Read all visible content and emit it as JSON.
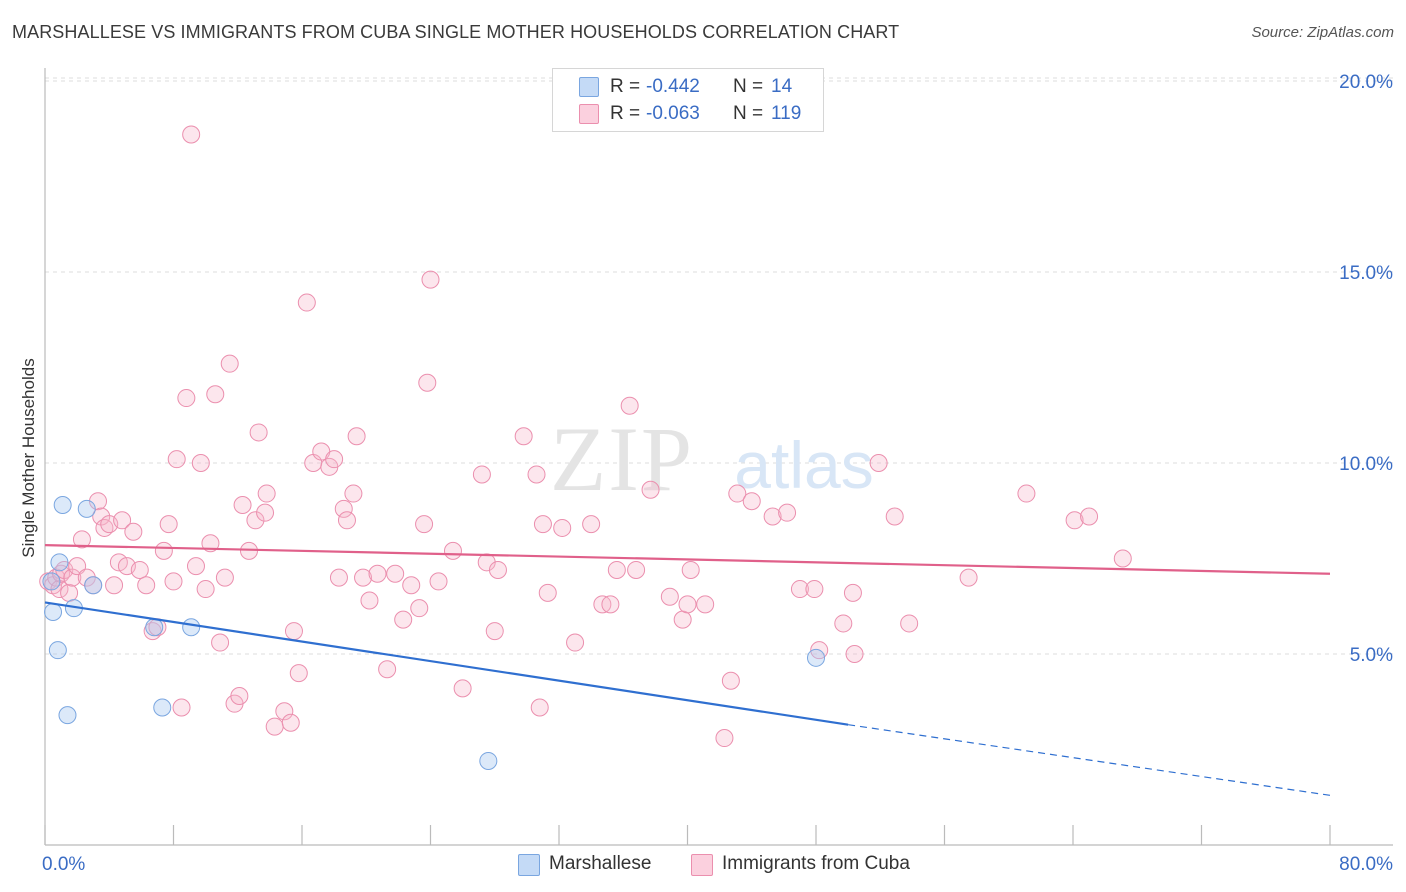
{
  "title": "MARSHALLESE VS IMMIGRANTS FROM CUBA SINGLE MOTHER HOUSEHOLDS CORRELATION CHART",
  "source": "Source: ZipAtlas.com",
  "watermark": {
    "zip": "ZIP",
    "atlas": "atlas"
  },
  "legend": {
    "r_label": "R =",
    "n_label": "N =",
    "rows": [
      {
        "name": "Marshallese",
        "r": "-0.442",
        "n": "14",
        "color": "#a8c8f0"
      },
      {
        "name": "Immigrants from Cuba",
        "r": "-0.063",
        "n": "119",
        "color": "#f5b8cc"
      }
    ]
  },
  "colors": {
    "blue_line": "#2f6fd0",
    "pink_line": "#e0608a",
    "blue_dot_stroke": "#7aa6e0",
    "pink_dot_stroke": "#eb8fae",
    "tick_label": "#3a6cc4",
    "grid": "#dcdcdc"
  },
  "chart_data": {
    "type": "scatter",
    "title": "MARSHALLESE VS IMMIGRANTS FROM CUBA SINGLE MOTHER HOUSEHOLDS CORRELATION CHART",
    "xlabel": "",
    "ylabel": "Single Mother Households",
    "xlim": [
      0,
      80
    ],
    "ylim": [
      0,
      20.8
    ],
    "x_tick_labels": [
      "0.0%",
      "80.0%"
    ],
    "y_ticks": [
      5,
      10,
      15,
      20
    ],
    "y_tick_labels": [
      "5.0%",
      "10.0%",
      "15.0%",
      "20.0%"
    ],
    "grid": true,
    "legend_position": "top-center",
    "series": [
      {
        "name": "Marshallese",
        "trend": {
          "x0": 0,
          "y0": 6.35,
          "x1": 50,
          "y1": 3.15,
          "dash_to_x": 80,
          "dash_to_y": 1.3
        },
        "points": [
          [
            0.4,
            6.9
          ],
          [
            0.5,
            6.1
          ],
          [
            0.8,
            5.1
          ],
          [
            0.9,
            7.4
          ],
          [
            1.1,
            8.9
          ],
          [
            1.4,
            3.4
          ],
          [
            1.8,
            6.2
          ],
          [
            2.6,
            8.8
          ],
          [
            3.0,
            6.8
          ],
          [
            6.8,
            5.7
          ],
          [
            7.3,
            3.6
          ],
          [
            9.1,
            5.7
          ],
          [
            27.6,
            2.2
          ],
          [
            48.0,
            4.9
          ]
        ]
      },
      {
        "name": "Immigrants from Cuba",
        "trend": {
          "x0": 0,
          "y0": 7.85,
          "x1": 80,
          "y1": 7.1
        },
        "points": [
          [
            0.2,
            6.9
          ],
          [
            0.5,
            6.8
          ],
          [
            0.7,
            7.0
          ],
          [
            0.9,
            6.7
          ],
          [
            1.0,
            7.1
          ],
          [
            1.2,
            7.2
          ],
          [
            1.5,
            6.6
          ],
          [
            1.7,
            7.0
          ],
          [
            2.0,
            7.3
          ],
          [
            2.3,
            8.0
          ],
          [
            2.6,
            7.0
          ],
          [
            3.0,
            6.8
          ],
          [
            3.3,
            9.0
          ],
          [
            3.5,
            8.6
          ],
          [
            3.7,
            8.3
          ],
          [
            4.0,
            8.4
          ],
          [
            4.3,
            6.8
          ],
          [
            4.6,
            7.4
          ],
          [
            4.8,
            8.5
          ],
          [
            5.1,
            7.3
          ],
          [
            5.5,
            8.2
          ],
          [
            5.9,
            7.2
          ],
          [
            6.3,
            6.8
          ],
          [
            6.7,
            5.6
          ],
          [
            7.0,
            5.7
          ],
          [
            7.4,
            7.7
          ],
          [
            7.7,
            8.4
          ],
          [
            8.0,
            6.9
          ],
          [
            8.2,
            10.1
          ],
          [
            8.5,
            3.6
          ],
          [
            8.8,
            11.7
          ],
          [
            9.1,
            18.6
          ],
          [
            9.4,
            7.3
          ],
          [
            9.7,
            10.0
          ],
          [
            10.0,
            6.7
          ],
          [
            10.3,
            7.9
          ],
          [
            10.6,
            11.8
          ],
          [
            10.9,
            5.3
          ],
          [
            11.2,
            7.0
          ],
          [
            11.5,
            12.6
          ],
          [
            11.8,
            3.7
          ],
          [
            12.1,
            3.9
          ],
          [
            12.3,
            8.9
          ],
          [
            12.7,
            7.7
          ],
          [
            13.1,
            8.5
          ],
          [
            13.3,
            10.8
          ],
          [
            13.7,
            8.7
          ],
          [
            13.8,
            9.2
          ],
          [
            14.3,
            3.1
          ],
          [
            14.9,
            3.5
          ],
          [
            15.3,
            3.2
          ],
          [
            15.5,
            5.6
          ],
          [
            15.8,
            4.5
          ],
          [
            16.3,
            14.2
          ],
          [
            16.7,
            10.0
          ],
          [
            17.2,
            10.3
          ],
          [
            17.7,
            9.9
          ],
          [
            18.0,
            10.1
          ],
          [
            18.3,
            7.0
          ],
          [
            18.6,
            8.8
          ],
          [
            18.8,
            8.5
          ],
          [
            19.2,
            9.2
          ],
          [
            19.4,
            10.7
          ],
          [
            19.8,
            7.0
          ],
          [
            20.2,
            6.4
          ],
          [
            20.7,
            7.1
          ],
          [
            21.3,
            4.6
          ],
          [
            21.8,
            7.1
          ],
          [
            22.3,
            5.9
          ],
          [
            22.8,
            6.8
          ],
          [
            23.3,
            6.2
          ],
          [
            23.6,
            8.4
          ],
          [
            23.8,
            12.1
          ],
          [
            24.0,
            14.8
          ],
          [
            24.5,
            6.9
          ],
          [
            25.4,
            7.7
          ],
          [
            26.0,
            4.1
          ],
          [
            27.2,
            9.7
          ],
          [
            27.5,
            7.4
          ],
          [
            28.0,
            5.6
          ],
          [
            28.2,
            7.2
          ],
          [
            29.8,
            10.7
          ],
          [
            30.6,
            9.7
          ],
          [
            30.8,
            3.6
          ],
          [
            31.0,
            8.4
          ],
          [
            31.3,
            6.6
          ],
          [
            32.2,
            8.3
          ],
          [
            33.0,
            5.3
          ],
          [
            34.0,
            8.4
          ],
          [
            34.7,
            6.3
          ],
          [
            35.2,
            6.3
          ],
          [
            35.6,
            7.2
          ],
          [
            36.4,
            11.5
          ],
          [
            36.8,
            7.2
          ],
          [
            37.7,
            9.3
          ],
          [
            38.9,
            6.5
          ],
          [
            39.7,
            5.9
          ],
          [
            40.0,
            6.3
          ],
          [
            40.2,
            7.2
          ],
          [
            41.1,
            6.3
          ],
          [
            42.3,
            2.8
          ],
          [
            42.7,
            4.3
          ],
          [
            43.1,
            9.2
          ],
          [
            44.0,
            9.0
          ],
          [
            45.3,
            8.6
          ],
          [
            46.2,
            8.7
          ],
          [
            47.0,
            6.7
          ],
          [
            47.9,
            6.7
          ],
          [
            48.2,
            5.1
          ],
          [
            49.7,
            5.8
          ],
          [
            50.3,
            6.6
          ],
          [
            50.4,
            5.0
          ],
          [
            51.9,
            10.0
          ],
          [
            52.9,
            8.6
          ],
          [
            53.8,
            5.8
          ],
          [
            57.5,
            7.0
          ],
          [
            61.1,
            9.2
          ],
          [
            64.1,
            8.5
          ],
          [
            65.0,
            8.6
          ],
          [
            67.1,
            7.5
          ]
        ]
      }
    ]
  }
}
